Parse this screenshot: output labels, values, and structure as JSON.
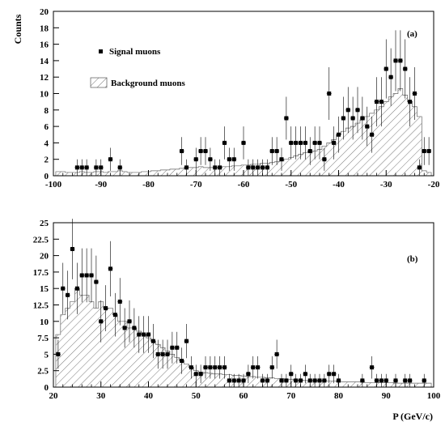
{
  "figure": {
    "y_axis_title": "Counts",
    "x_axis_title": "P (GeV/c)"
  },
  "chart_data": [
    {
      "type": "histogram",
      "panel_label": "(a)",
      "xlim": [
        -100,
        -20
      ],
      "ylim": [
        0,
        20
      ],
      "x_ticks": [
        -100,
        -90,
        -80,
        -70,
        -60,
        -50,
        -40,
        -30,
        -20
      ],
      "y_ticks": [
        0,
        2,
        4,
        6,
        8,
        10,
        12,
        14,
        16,
        18,
        20
      ],
      "legend": [
        {
          "marker": "square",
          "label": "Signal muons"
        },
        {
          "marker": "hatched-box",
          "label": "Background muons"
        }
      ],
      "signal": {
        "name": "Signal muons",
        "x": [
          -95,
          -94,
          -93,
          -91,
          -90,
          -88,
          -86,
          -73,
          -72,
          -70,
          -69,
          -68,
          -67,
          -66,
          -65,
          -64,
          -63,
          -62,
          -60,
          -59,
          -58,
          -57,
          -56,
          -55,
          -54,
          -53,
          -52,
          -51,
          -50,
          -49,
          -48,
          -47,
          -46,
          -45,
          -44,
          -43,
          -42,
          -41,
          -40,
          -39,
          -38,
          -37,
          -36,
          -35,
          -34,
          -33,
          -32,
          -31,
          -30,
          -29,
          -28,
          -27,
          -26,
          -25,
          -24,
          -23,
          -22,
          -21
        ],
        "y": [
          1,
          1,
          1,
          1,
          1,
          2,
          1,
          3,
          1,
          2,
          3,
          3,
          2,
          1,
          1,
          4,
          2,
          2,
          4,
          1,
          1,
          1,
          1,
          1,
          3,
          3,
          2,
          7,
          4,
          4,
          4,
          4,
          3,
          4,
          4,
          2,
          10,
          4,
          5,
          7,
          8,
          7,
          8,
          7,
          6,
          5,
          9,
          9,
          13,
          12,
          14,
          14,
          13,
          9,
          10,
          1,
          3,
          3
        ],
        "err": [
          1,
          1,
          1,
          1,
          1,
          1.4,
          1,
          1.7,
          1,
          1.4,
          1.7,
          1.7,
          1.4,
          1,
          1,
          2,
          1.4,
          1.4,
          2,
          1,
          1,
          1,
          1,
          1,
          1.7,
          1.7,
          1.4,
          2.6,
          2,
          2,
          2,
          2,
          1.7,
          2,
          2,
          1.4,
          3.2,
          2,
          2.2,
          2.6,
          2.8,
          2.6,
          2.8,
          2.6,
          2.4,
          2.2,
          3,
          3,
          3.6,
          3.5,
          3.7,
          3.7,
          3.6,
          3,
          3.2,
          1,
          1.7,
          1.7
        ]
      },
      "background": {
        "name": "Background muons",
        "bin_width": 1,
        "x": [
          -99,
          -98,
          -97,
          -96,
          -95,
          -94,
          -93,
          -92,
          -91,
          -90,
          -89,
          -88,
          -87,
          -86,
          -85,
          -84,
          -83,
          -82,
          -81,
          -80,
          -79,
          -78,
          -77,
          -76,
          -75,
          -74,
          -73,
          -72,
          -71,
          -70,
          -69,
          -68,
          -67,
          -66,
          -65,
          -64,
          -63,
          -62,
          -61,
          -60,
          -59,
          -58,
          -57,
          -56,
          -55,
          -54,
          -53,
          -52,
          -51,
          -50,
          -49,
          -48,
          -47,
          -46,
          -45,
          -44,
          -43,
          -42,
          -41,
          -40,
          -39,
          -38,
          -37,
          -36,
          -35,
          -34,
          -33,
          -32,
          -31,
          -30,
          -29,
          -28,
          -27,
          -26,
          -25,
          -24,
          -23,
          -22,
          -21
        ],
        "y": [
          0.5,
          0.5,
          0.4,
          0.4,
          0.4,
          0.5,
          0.4,
          0.4,
          0.5,
          0.5,
          0.4,
          0.5,
          0.5,
          0.6,
          0.5,
          0.4,
          0.4,
          0.4,
          0.5,
          0.5,
          0.6,
          0.6,
          0.7,
          0.7,
          0.8,
          0.8,
          0.9,
          1.0,
          1.0,
          1.0,
          1.1,
          1.0,
          1.0,
          1.0,
          1.0,
          1.1,
          1.1,
          1.2,
          1.2,
          1.3,
          1.3,
          1.4,
          1.4,
          1.5,
          1.5,
          1.6,
          1.7,
          1.8,
          2.0,
          2.2,
          2.4,
          2.6,
          2.8,
          3.0,
          3.0,
          3.2,
          3.6,
          4.0,
          4.4,
          5.0,
          5.4,
          5.8,
          6.0,
          6.4,
          6.8,
          7.2,
          7.6,
          8.0,
          8.4,
          9.0,
          9.6,
          10.0,
          10.6,
          9.8,
          9.0,
          8.4,
          7.2,
          0.6,
          0.4
        ]
      }
    },
    {
      "type": "histogram",
      "panel_label": "(b)",
      "xlim": [
        20,
        100
      ],
      "ylim": [
        0,
        25
      ],
      "x_ticks": [
        20,
        30,
        40,
        50,
        60,
        70,
        80,
        90,
        100
      ],
      "y_ticks": [
        0,
        2.5,
        5,
        7.5,
        10,
        12.5,
        15,
        17.5,
        20,
        22.5,
        25
      ],
      "y_tick_labels": [
        "0",
        "2.5",
        "5",
        "7.5",
        "10",
        "12.5",
        "15",
        "17.5",
        "20",
        "22.5",
        "25"
      ],
      "signal": {
        "name": "Signal muons",
        "x": [
          21,
          22,
          23,
          24,
          25,
          26,
          27,
          28,
          29,
          30,
          31,
          32,
          33,
          34,
          35,
          36,
          37,
          38,
          39,
          40,
          41,
          42,
          43,
          44,
          45,
          46,
          47,
          48,
          49,
          50,
          51,
          52,
          53,
          54,
          55,
          56,
          57,
          58,
          59,
          60,
          61,
          62,
          63,
          64,
          65,
          66,
          67,
          68,
          69,
          70,
          71,
          72,
          73,
          74,
          75,
          76,
          77,
          78,
          79,
          80,
          85,
          87,
          88,
          89,
          90,
          92,
          94,
          95,
          98
        ],
        "y": [
          5,
          15,
          14,
          21,
          15,
          17,
          17,
          17,
          16,
          10,
          12,
          18,
          11,
          13,
          9,
          10,
          9,
          8,
          8,
          8,
          7,
          5,
          5,
          5,
          6,
          6,
          4,
          7,
          3,
          2,
          2,
          3,
          3,
          3,
          3,
          3,
          1,
          1,
          1,
          1,
          2,
          3,
          3,
          1,
          1,
          3,
          5,
          1,
          1,
          2,
          1,
          1,
          2,
          1,
          1,
          1,
          1,
          2,
          2,
          1,
          1,
          3,
          1,
          1,
          1,
          1,
          1,
          1,
          1
        ],
        "err": [
          2.2,
          3.9,
          3.7,
          4.6,
          3.9,
          4.1,
          4.1,
          4.1,
          4,
          3.2,
          3.5,
          4.2,
          3.3,
          3.6,
          3,
          3.2,
          3,
          2.8,
          2.8,
          2.8,
          2.6,
          2.2,
          2.2,
          2.2,
          2.4,
          2.4,
          2,
          2.6,
          1.7,
          1.4,
          1.4,
          1.7,
          1.7,
          1.7,
          1.7,
          1.7,
          1,
          1,
          1,
          1,
          1.4,
          1.7,
          1.7,
          1,
          1,
          1.7,
          2.2,
          1,
          1,
          1.4,
          1,
          1,
          1.4,
          1,
          1,
          1,
          1,
          1.4,
          1.4,
          1,
          1,
          1.7,
          1,
          1,
          1,
          1,
          1,
          1,
          1
        ]
      },
      "background": {
        "name": "Background muons",
        "bin_width": 1,
        "x": [
          21,
          22,
          23,
          24,
          25,
          26,
          27,
          28,
          29,
          30,
          31,
          32,
          33,
          34,
          35,
          36,
          37,
          38,
          39,
          40,
          41,
          42,
          43,
          44,
          45,
          46,
          47,
          48,
          49,
          50,
          51,
          52,
          53,
          54,
          55,
          56,
          57,
          58,
          59,
          60,
          61,
          62,
          63,
          64,
          65,
          66,
          67,
          68,
          69,
          70,
          71,
          72,
          73,
          74,
          75,
          76,
          77,
          78,
          79,
          80,
          81,
          82,
          83,
          84,
          85,
          86,
          87,
          88,
          89,
          90,
          91,
          92,
          93,
          94,
          95,
          96,
          97,
          98,
          99
        ],
        "y": [
          8,
          11,
          12,
          13,
          15,
          14,
          14,
          13,
          12,
          13,
          12,
          12,
          11,
          10,
          10,
          9,
          9,
          8.5,
          8,
          7.5,
          7,
          6.5,
          6,
          5.5,
          5,
          4.5,
          4,
          3.5,
          3,
          2.5,
          2.3,
          2.2,
          2.1,
          2,
          2,
          1.9,
          1.9,
          1.8,
          1.8,
          1.7,
          1.6,
          1.6,
          1.5,
          1.5,
          1.4,
          1.4,
          1.3,
          1.3,
          1.2,
          1.2,
          1.1,
          1.1,
          1.0,
          1.0,
          1.0,
          0.9,
          0.9,
          0.9,
          0.9,
          0.8,
          0.8,
          0.8,
          0.8,
          0.8,
          0.8,
          0.7,
          0.7,
          0.7,
          0.7,
          0.7,
          0.7,
          0.6,
          0.6,
          0.6,
          0.6,
          0.6,
          0.6,
          0.6,
          0.6
        ]
      }
    }
  ]
}
